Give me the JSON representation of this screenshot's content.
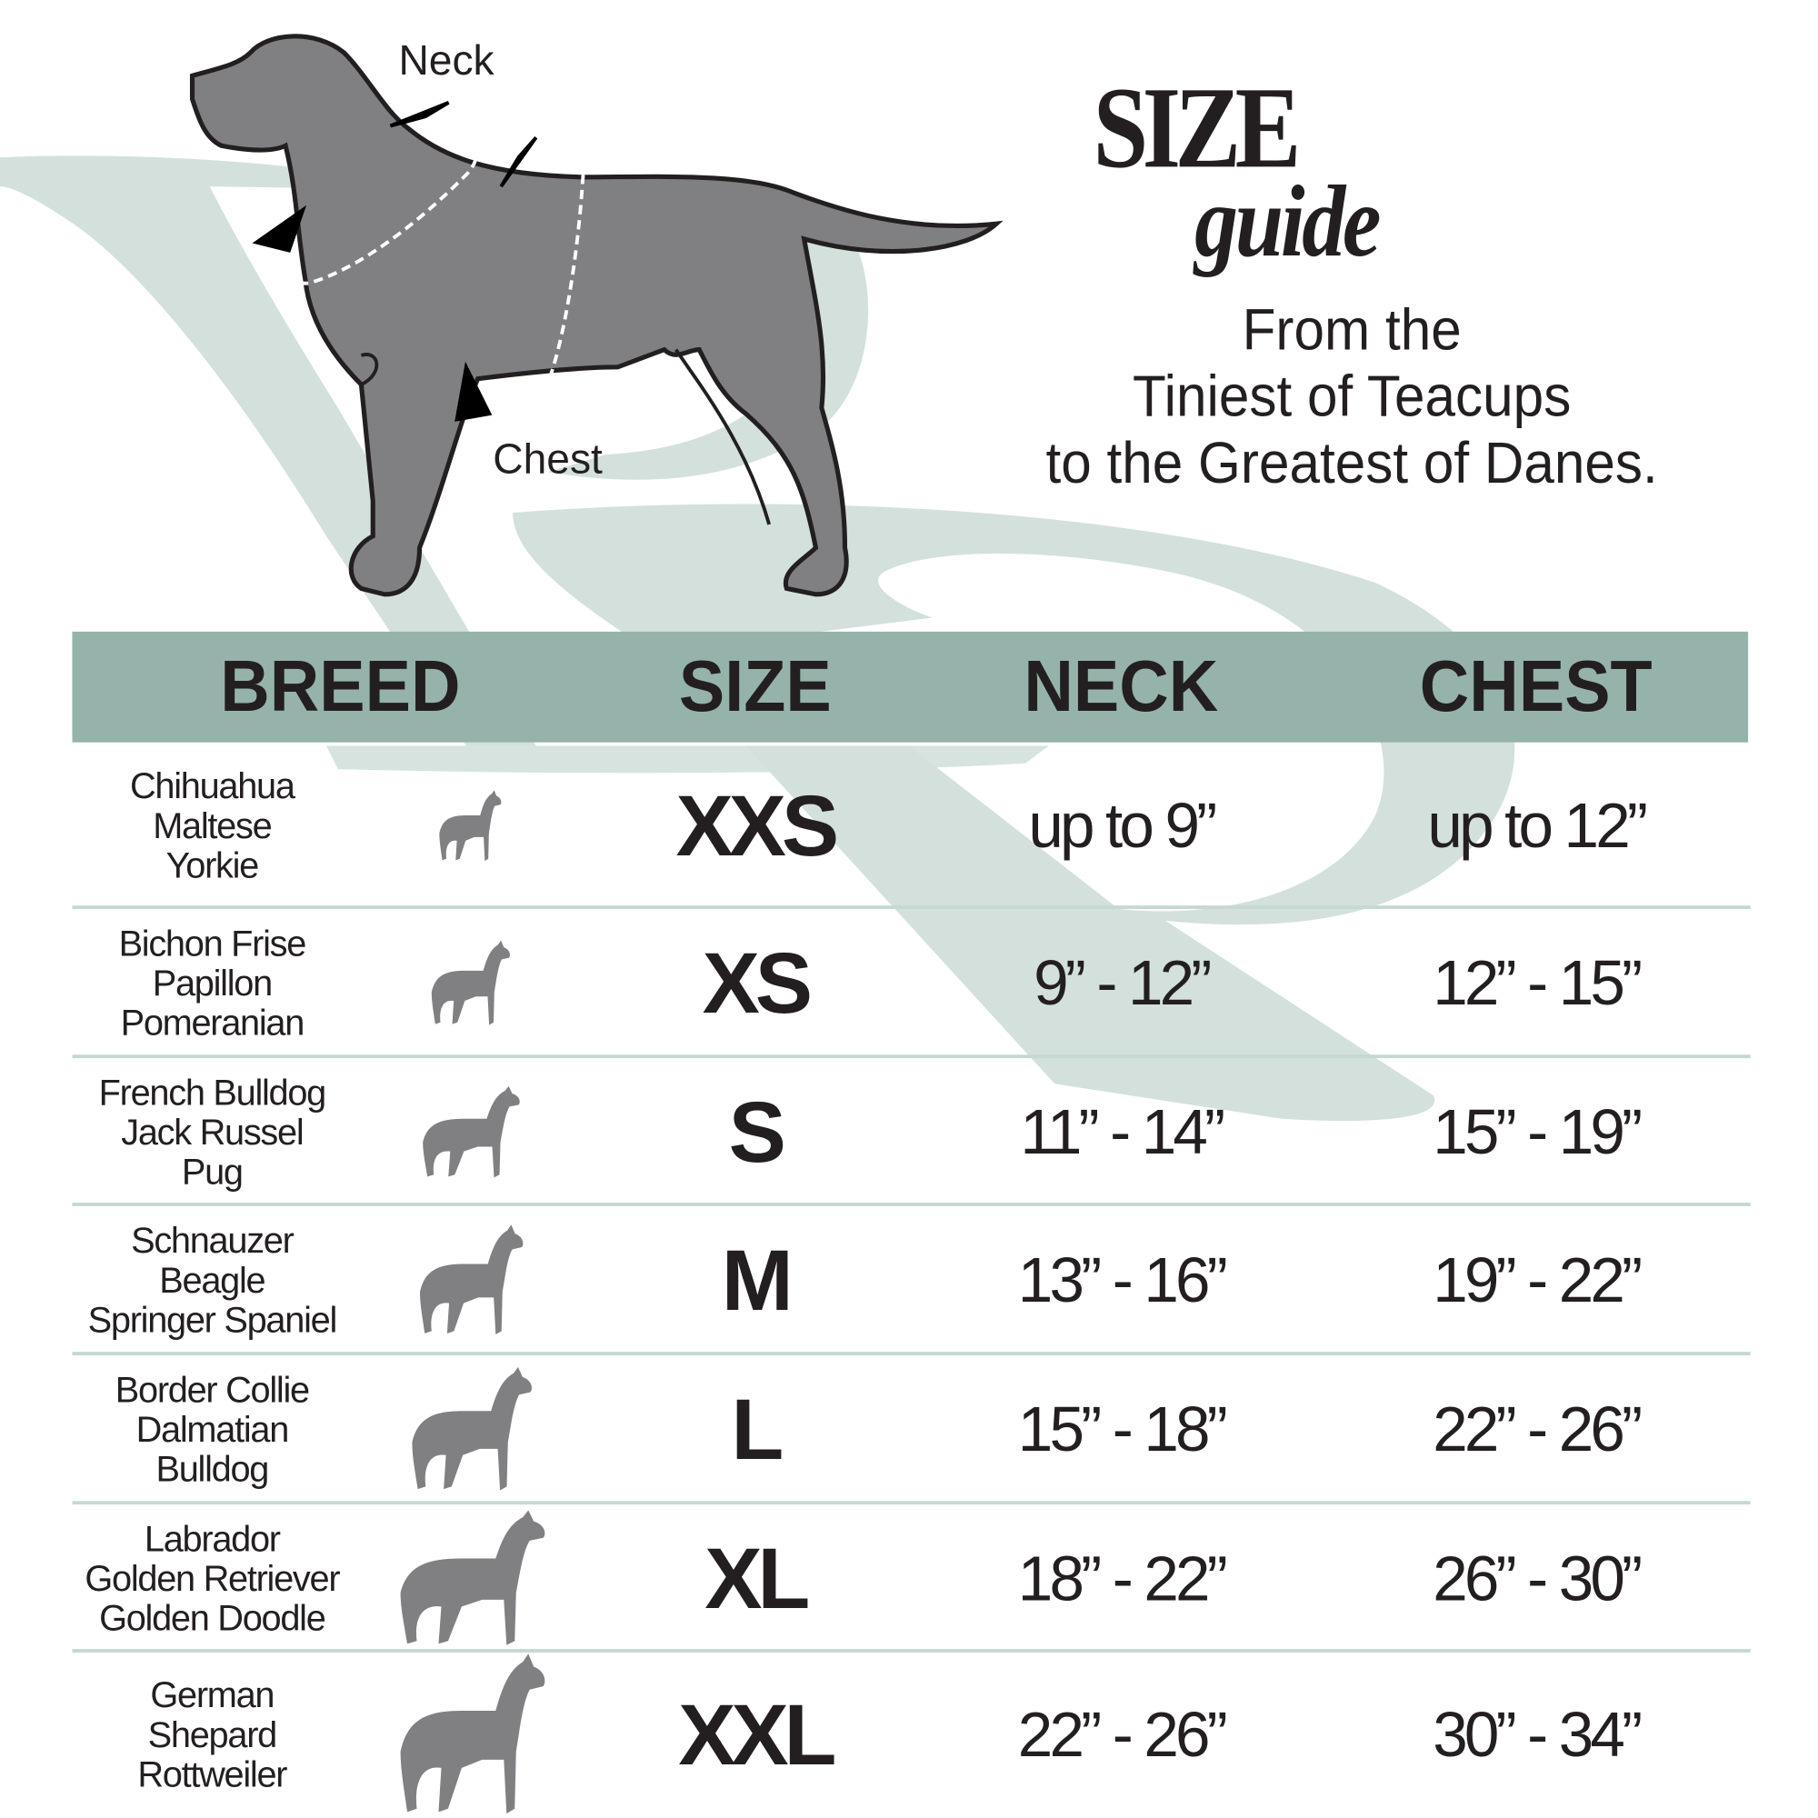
{
  "title": {
    "size": "SIZE",
    "guide": "guide"
  },
  "tagline": [
    "From the",
    "Tiniest of Teacups",
    "to the Greatest of Danes."
  ],
  "diagram": {
    "neck_label": "Neck",
    "chest_label": "Chest"
  },
  "colors": {
    "header_band": "#95b3aa",
    "watermark": "#d3e0dc",
    "dog": "#808083",
    "divider": "#c5d8d1",
    "text": "#231f20"
  },
  "table": {
    "headers": [
      "BREED",
      "SIZE",
      "NECK",
      "CHEST"
    ],
    "rows": [
      {
        "breeds": [
          "Chihuahua",
          "Maltese",
          "Yorkie"
        ],
        "icon": "chihuahua-icon",
        "size": "XXS",
        "neck": "up to 9”",
        "chest": "up to 12”"
      },
      {
        "breeds": [
          "Bichon Frise",
          "Papillon",
          "Pomeranian"
        ],
        "icon": "pomeranian-icon",
        "size": "XS",
        "neck": "9” - 12”",
        "chest": "12” - 15”"
      },
      {
        "breeds": [
          "French Bulldog",
          "Jack Russel",
          "Pug"
        ],
        "icon": "french-bulldog-icon",
        "size": "S",
        "neck": "11” - 14”",
        "chest": "15” - 19”"
      },
      {
        "breeds": [
          "Schnauzer",
          "Beagle",
          "Springer Spaniel"
        ],
        "icon": "schnauzer-icon",
        "size": "M",
        "neck": "13” - 16”",
        "chest": "19” - 22”"
      },
      {
        "breeds": [
          "Border Collie",
          "Dalmatian",
          "Bulldog"
        ],
        "icon": "collie-icon",
        "size": "L",
        "neck": "15” - 18”",
        "chest": "22” - 26”"
      },
      {
        "breeds": [
          "Labrador",
          "Golden Retriever",
          "Golden Doodle"
        ],
        "icon": "retriever-icon",
        "size": "XL",
        "neck": "18” - 22”",
        "chest": "26” - 30”"
      },
      {
        "breeds": [
          "German",
          "Shepard",
          "Rottweiler"
        ],
        "icon": "german-shepherd-icon",
        "size": "XXL",
        "neck": "22” - 26”",
        "chest": "30” - 34”"
      }
    ]
  }
}
